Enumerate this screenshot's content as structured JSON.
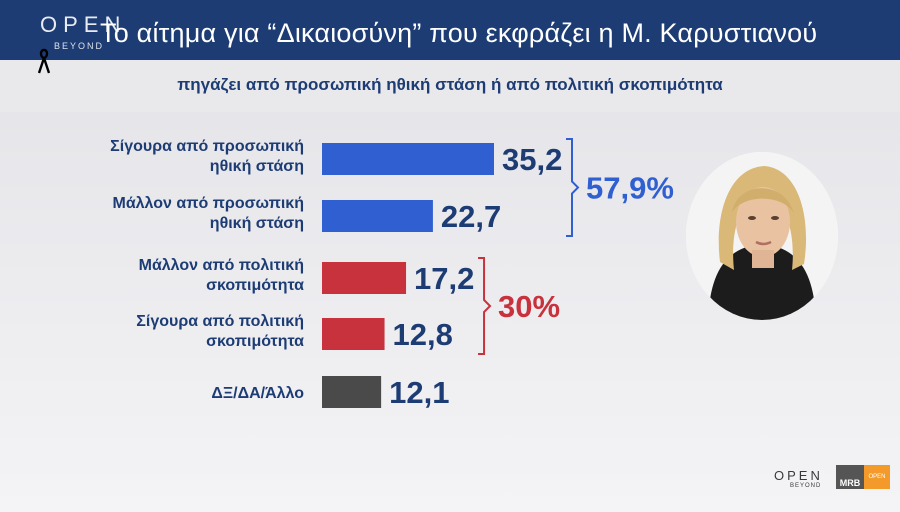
{
  "header": {
    "title": "Το αίτημα για “Δικαιοσύνη” που εκφράζει η Μ. Καρυστιανού",
    "logo": "OPEN",
    "logo_sub": "BEYOND"
  },
  "subtitle": "πηγάζει από προσωπική ηθική στάση ή από πολιτική σκοπιμότητα",
  "chart_data": {
    "type": "bar",
    "orientation": "horizontal",
    "categories": [
      [
        "Σίγουρα από προσωπική",
        "ηθική στάση"
      ],
      [
        "Μάλλον από προσωπική",
        "ηθική στάση"
      ],
      [
        "Μάλλον από πολιτική",
        "σκοπιμότητα"
      ],
      [
        "Σίγουρα από πολιτική",
        "σκοπιμότητα"
      ],
      [
        "ΔΞ/ΔΑ/Άλλο"
      ]
    ],
    "values": [
      35.2,
      22.7,
      17.2,
      12.8,
      12.1
    ],
    "value_labels": [
      "35,2",
      "22,7",
      "17,2",
      "12,8",
      "12,1"
    ],
    "colors": [
      "#2f5fd0",
      "#2f5fd0",
      "#c8323c",
      "#c8323c",
      "#4a4a4a"
    ],
    "groups": [
      {
        "label": "57,9%",
        "color": "#2f5fd0",
        "from": 0,
        "to": 1
      },
      {
        "label": "30%",
        "color": "#c8323c",
        "from": 2,
        "to": 3
      }
    ],
    "xlim": [
      0,
      35.2
    ]
  },
  "footer": {
    "logo": "OPEN",
    "logo_sub": "BEYOND",
    "mrb": "MRB",
    "mrb_tag": "OPEN"
  }
}
